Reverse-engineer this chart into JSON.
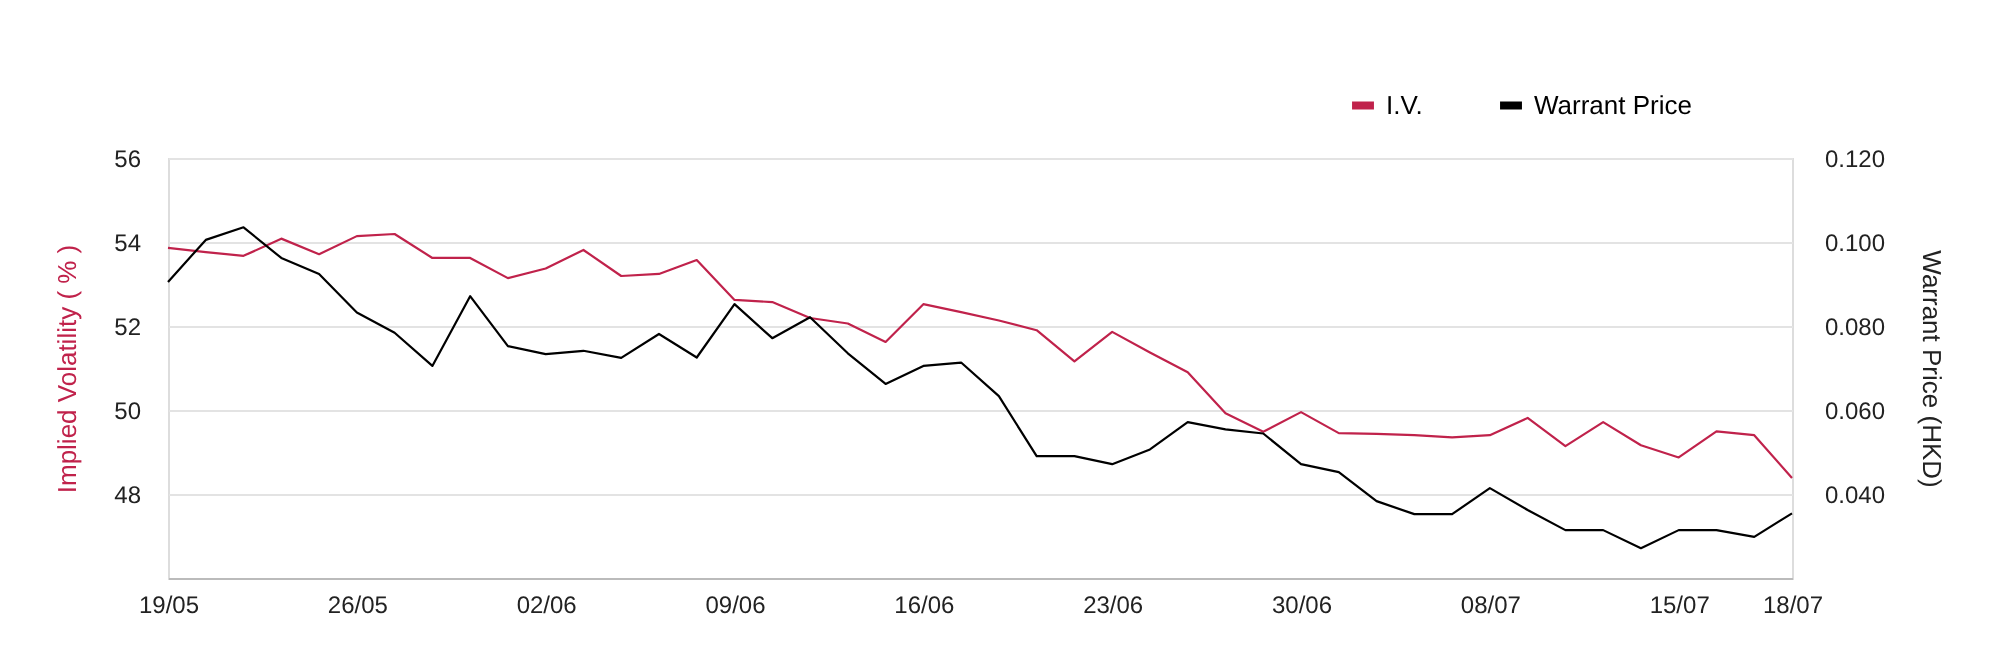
{
  "chart_data": {
    "type": "line",
    "categories": [
      "19/05",
      null,
      null,
      null,
      null,
      "26/05",
      null,
      null,
      null,
      null,
      "02/06",
      null,
      null,
      null,
      null,
      "09/06",
      null,
      null,
      null,
      null,
      "16/06",
      null,
      null,
      null,
      null,
      "23/06",
      null,
      null,
      null,
      null,
      "30/06",
      null,
      null,
      null,
      null,
      "08/07",
      null,
      null,
      null,
      null,
      "15/07",
      null,
      null,
      "18/07"
    ],
    "ylabel": "Implied Volatility ( % )",
    "y2label": "Warrant Price (HKD)",
    "ylim": [
      46,
      56
    ],
    "yticks": [
      48,
      50,
      52,
      54,
      56
    ],
    "y2lim": [
      0.02,
      0.12
    ],
    "y2ticks": [
      {
        "value": 0.04,
        "label": "0.040"
      },
      {
        "value": 0.06,
        "label": "0.060"
      },
      {
        "value": 0.08,
        "label": "0.080"
      },
      {
        "value": 0.1,
        "label": "0.100"
      },
      {
        "value": 0.12,
        "label": "0.120"
      }
    ],
    "grid": "y",
    "legend": "top right",
    "line_style": "solid",
    "marker": "none",
    "series": [
      {
        "name": "I.V.",
        "color": "#c0224b",
        "values": [
          53.86,
          53.76,
          53.67,
          54.08,
          53.71,
          54.14,
          54.19,
          53.62,
          53.62,
          53.14,
          53.37,
          53.81,
          53.19,
          53.24,
          53.57,
          52.62,
          52.57,
          52.19,
          52.06,
          51.62,
          52.52,
          52.33,
          52.13,
          51.9,
          51.16,
          51.86,
          51.37,
          50.9,
          49.92,
          49.48,
          49.95,
          49.45,
          49.43,
          49.4,
          49.35,
          49.4,
          49.81,
          49.14,
          49.71,
          49.16,
          48.87,
          49.49,
          49.4,
          48.38
        ]
      },
      {
        "name": "Warrant Price",
        "color": "#000000",
        "axis": "y2",
        "values": [
          0.0905,
          0.1005,
          0.1035,
          0.0962,
          0.0924,
          0.0832,
          0.0784,
          0.0705,
          0.0871,
          0.0752,
          0.0733,
          0.0741,
          0.0724,
          0.0781,
          0.0725,
          0.0852,
          0.0771,
          0.0821,
          0.0735,
          0.0662,
          0.0705,
          0.0713,
          0.0633,
          0.049,
          0.049,
          0.0471,
          0.0506,
          0.0571,
          0.0554,
          0.0544,
          0.0471,
          0.0452,
          0.0383,
          0.0352,
          0.0352,
          0.0414,
          0.0362,
          0.0314,
          0.0314,
          0.0271,
          0.0314,
          0.0314,
          0.0298,
          0.0354
        ]
      }
    ]
  }
}
